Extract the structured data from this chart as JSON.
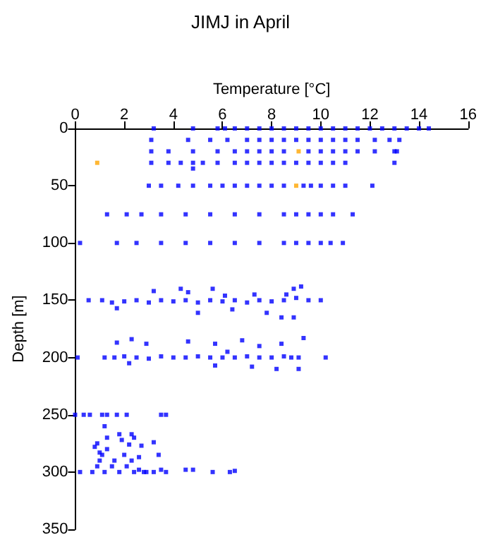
{
  "chart_data": {
    "type": "scatter",
    "title": "JIMJ in April",
    "xlabel": "Temperature [°C]",
    "ylabel": "Depth [m]",
    "xlim": [
      0,
      16
    ],
    "xticks": [
      0,
      2,
      4,
      6,
      8,
      10,
      12,
      14,
      16
    ],
    "ylim": [
      350,
      0
    ],
    "yticks": [
      0,
      50,
      100,
      150,
      200,
      250,
      300,
      350
    ],
    "grid": false,
    "marker": "square",
    "series": [
      {
        "color": "#0000ff",
        "x": [
          3.2,
          4.8,
          5.8,
          6.1,
          6.5,
          7,
          7.5,
          8,
          8.5,
          9,
          9.5,
          10,
          10.5,
          11,
          11.5,
          12,
          12.5,
          13,
          13.5,
          14,
          14.4,
          3.1,
          4.6,
          5.5,
          6.2,
          7,
          7.5,
          8,
          8.5,
          9,
          9.5,
          10,
          10.5,
          11,
          11.5,
          12.2,
          12.8,
          13.2,
          3.1,
          3.8,
          4.8,
          5.8,
          6.5,
          7,
          7.5,
          8,
          8.5,
          9.5,
          10,
          10.5,
          11,
          11.5,
          12.2,
          13,
          13.1,
          3.1,
          3.8,
          4.3,
          4.8,
          5.2,
          5.8,
          6.5,
          7,
          7.5,
          8,
          8.5,
          9,
          9.5,
          10,
          10.5,
          11,
          13,
          4.8,
          3,
          3.5,
          4.2,
          4.8,
          5.5,
          6,
          6.5,
          7,
          7.5,
          8,
          8.5,
          9.3,
          9.6,
          10,
          10.5,
          11,
          12.1,
          1.3,
          2.1,
          2.7,
          3.5,
          4.5,
          5.5,
          6.5,
          7.5,
          8.5,
          9,
          9.5,
          10,
          10.5,
          11.3,
          0.2,
          1.7,
          2.5,
          3.5,
          4.5,
          5.5,
          6.5,
          7.5,
          8.5,
          9,
          9.5,
          10,
          10.4,
          10.9,
          0.55,
          1.1,
          1.5,
          2,
          2.5,
          3,
          3.5,
          4,
          4.5,
          5,
          5.5,
          6,
          6.5,
          7,
          7.5,
          8,
          8.5,
          9,
          9.5,
          10,
          3.2,
          4.3,
          4.6,
          5.6,
          6.1,
          7.3,
          8.6,
          8.9,
          9.2,
          1.7,
          5,
          6.4,
          7.8,
          8.4,
          8.9,
          0.1,
          1.2,
          1.6,
          2,
          2.5,
          3,
          3.5,
          4,
          4.5,
          5,
          5.5,
          6,
          6.5,
          7,
          7.5,
          8,
          8.5,
          8.8,
          10.2,
          1.7,
          2.3,
          2.9,
          4.6,
          5.7,
          6.2,
          6.8,
          7.5,
          8.4,
          9.3,
          9.1,
          2.2,
          5.7,
          7.2,
          8.2,
          9.1,
          0,
          0.35,
          0.6,
          1.1,
          1.3,
          1.7,
          2.1,
          3.5,
          3.7,
          0.2,
          2.8,
          3.2,
          3.5,
          3.7,
          4.5,
          4.8,
          5.6,
          6.3,
          6.5,
          0.7,
          0.9,
          1,
          1.1,
          1.2,
          1.3,
          1.5,
          1.6,
          1.8,
          2,
          2.1,
          2.3,
          2.4,
          2.6,
          0.8,
          0.9,
          1.2,
          1.3,
          1.8,
          1.9,
          2.3,
          2.4,
          2.2,
          2.7,
          3.2,
          1,
          2.6,
          3.4,
          2.9
        ],
        "values": [
          0,
          0,
          0,
          0,
          0,
          0,
          0,
          0,
          0,
          0,
          0,
          0,
          0,
          0,
          0,
          0,
          0,
          0,
          0,
          0,
          0,
          10,
          10,
          10,
          10,
          10,
          10,
          10,
          10,
          10,
          10,
          10,
          10,
          10,
          10,
          10,
          10,
          10,
          20,
          20,
          20,
          20,
          20,
          20,
          20,
          20,
          20,
          20,
          20,
          20,
          20,
          20,
          20,
          20,
          20,
          30,
          30,
          30,
          30,
          30,
          30,
          30,
          30,
          30,
          30,
          30,
          30,
          30,
          30,
          30,
          30,
          30,
          35,
          50,
          50,
          50,
          50,
          50,
          50,
          50,
          50,
          50,
          50,
          50,
          50,
          50,
          50,
          50,
          50,
          50,
          75,
          75,
          75,
          75,
          75,
          75,
          75,
          75,
          75,
          75,
          75,
          75,
          75,
          75,
          100,
          100,
          100,
          100,
          100,
          100,
          100,
          100,
          100,
          100,
          100,
          100,
          100,
          100,
          150,
          150,
          152,
          151,
          150,
          152,
          150,
          151,
          150,
          152,
          150,
          151,
          150,
          152,
          150,
          151,
          150,
          148,
          150,
          150,
          142,
          140,
          143,
          140,
          146,
          145,
          145,
          140,
          138,
          157,
          161,
          158,
          161,
          165,
          165,
          200,
          200,
          200,
          199,
          200,
          201,
          199,
          200,
          200,
          199,
          200,
          200,
          200,
          199,
          200,
          200,
          199,
          200,
          200,
          187,
          184,
          188,
          186,
          188,
          195,
          185,
          190,
          188,
          183,
          200,
          205,
          207,
          208,
          210,
          210,
          250,
          250,
          250,
          250,
          250,
          250,
          250,
          250,
          250,
          300,
          300,
          300,
          298,
          300,
          298,
          298,
          300,
          300,
          299,
          300,
          295,
          290,
          285,
          300,
          280,
          295,
          290,
          300,
          285,
          295,
          290,
          300,
          298,
          278,
          275,
          260,
          270,
          267,
          272,
          267,
          270,
          276,
          277,
          274,
          283,
          287,
          285,
          300
        ]
      },
      {
        "color": "#ffa500",
        "x": [
          0.9,
          9.1,
          9.0
        ],
        "values": [
          30,
          20,
          50
        ]
      }
    ]
  }
}
